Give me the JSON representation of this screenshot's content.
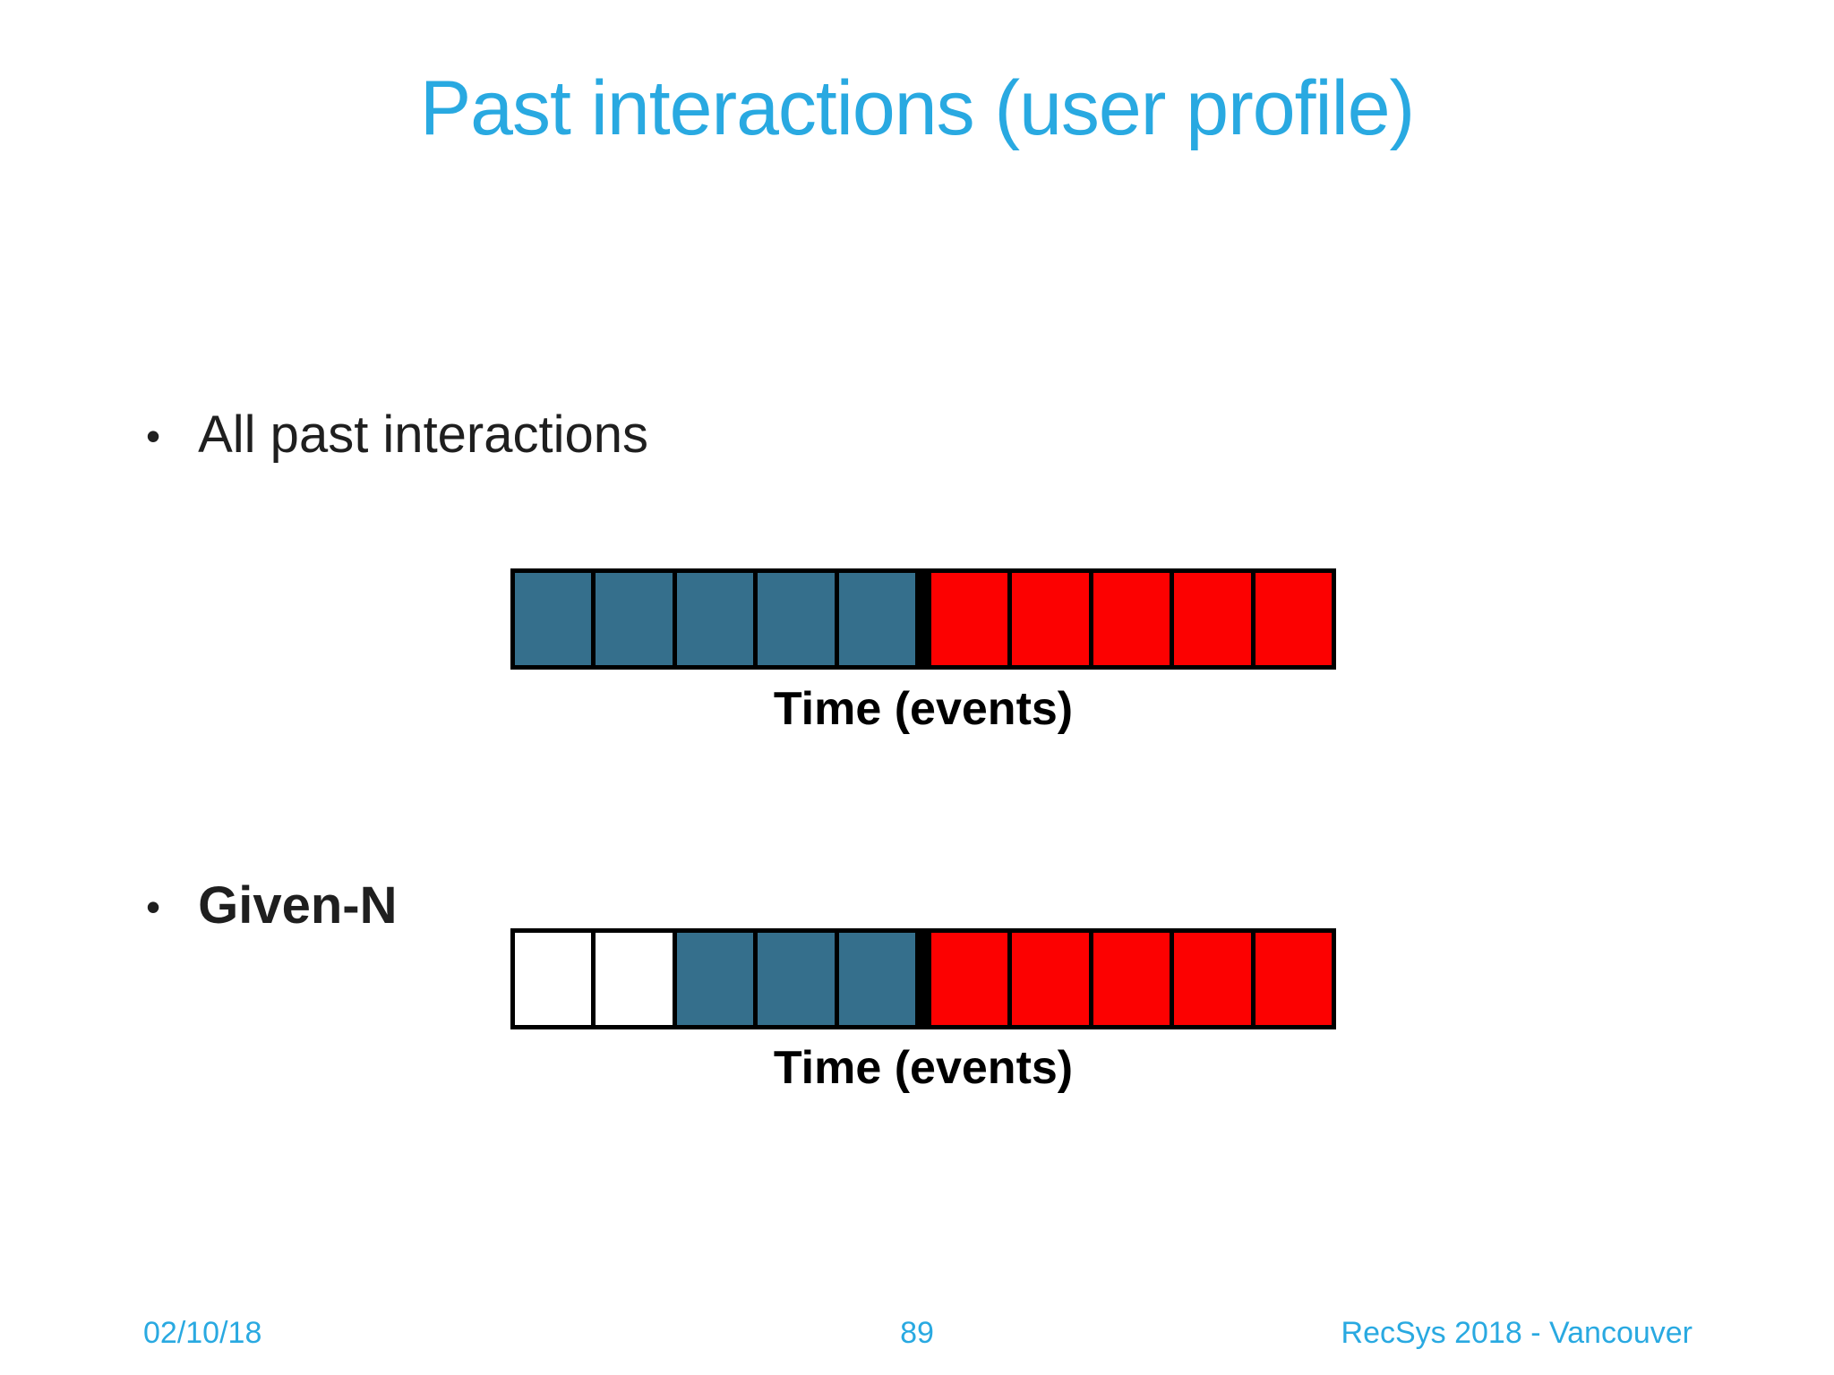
{
  "title": "Past interactions (user profile)",
  "bullet_glyph": "•",
  "bullets": {
    "all_past": "All past interactions",
    "given_n": "Given-N"
  },
  "accent_color": "#29A9E1",
  "cell_colors": {
    "blue": "#356F8C",
    "red": "#FC0101",
    "white": "#FFFFFF"
  },
  "diagram1": {
    "axis_label": "Time (events)",
    "cells": [
      "blue",
      "blue",
      "blue",
      "blue",
      "blue",
      "divider",
      "red",
      "red",
      "red",
      "red",
      "red"
    ]
  },
  "diagram2": {
    "axis_label": "Time (events)",
    "cells": [
      "white",
      "white",
      "blue",
      "blue",
      "blue",
      "divider",
      "red",
      "red",
      "red",
      "red",
      "red"
    ]
  },
  "footer": {
    "date": "02/10/18",
    "page_number": "89",
    "conference": "RecSys 2018 - Vancouver"
  }
}
